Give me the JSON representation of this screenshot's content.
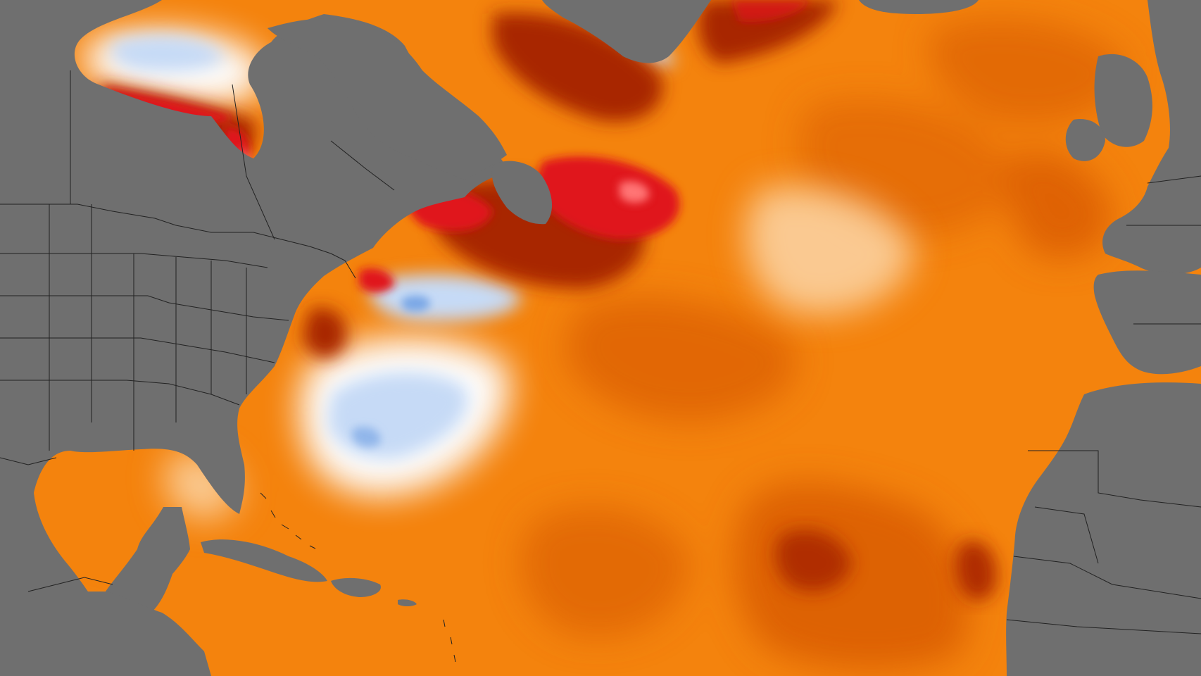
{
  "map": {
    "type": "sea-surface-temperature-anomaly",
    "colors": {
      "land": "#6f6f6f",
      "borders": "#222222",
      "ocean_base": "#f4830d",
      "anomaly_strong_cool": "#7aa7e6",
      "anomaly_cool": "#c6daf6",
      "anomaly_neutral": "#fdfdfd",
      "anomaly_slight_warm": "#fbd0a0",
      "anomaly_warm": "#f9a24a",
      "anomaly_hot": "#d55506",
      "anomaly_very_hot": "#a82606",
      "anomaly_extreme_hot": "#8a1208",
      "anomaly_record_hot": "#e0151f",
      "anomaly_peak": "#ff7474"
    }
  }
}
